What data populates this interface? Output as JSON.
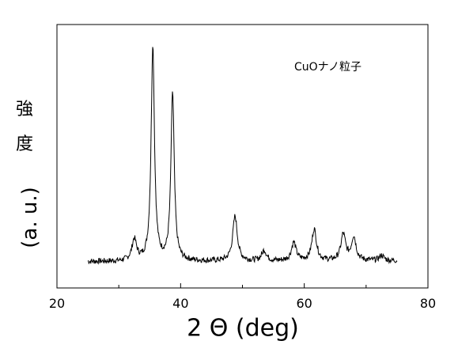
{
  "chart_data": {
    "type": "line",
    "xlabel": "2 Θ (deg)",
    "ylabel_chars": [
      "強",
      "度"
    ],
    "ylabel_unit": "(a. u.)",
    "annotation": "CuOナノ粒子",
    "xlim": [
      20,
      80
    ],
    "ylim": [
      0,
      100
    ],
    "xticks": [
      20,
      40,
      60,
      80
    ],
    "grid": false,
    "legend": "none",
    "x_range": [
      25,
      75
    ],
    "baseline": 10,
    "peaks": [
      {
        "x": 32.5,
        "y": 18
      },
      {
        "x": 35.5,
        "y": 92
      },
      {
        "x": 38.7,
        "y": 74
      },
      {
        "x": 48.8,
        "y": 27
      },
      {
        "x": 53.5,
        "y": 14
      },
      {
        "x": 58.3,
        "y": 17
      },
      {
        "x": 61.6,
        "y": 22
      },
      {
        "x": 66.3,
        "y": 20
      },
      {
        "x": 68.0,
        "y": 19
      },
      {
        "x": 72.5,
        "y": 12
      }
    ],
    "color": "#000000"
  }
}
